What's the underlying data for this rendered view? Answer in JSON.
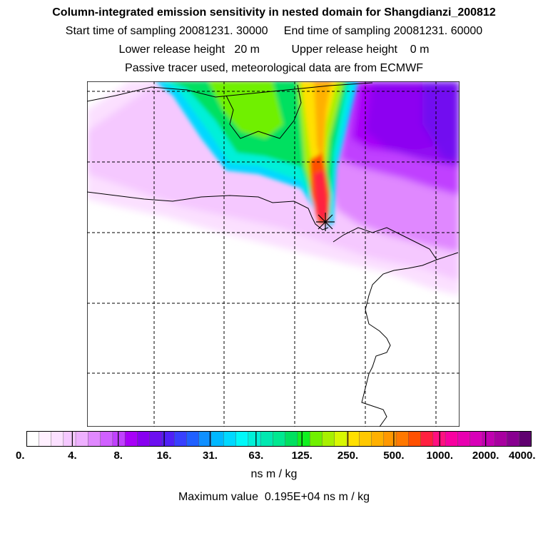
{
  "header": {
    "title": "Column-integrated emission sensitivity in nested domain for Shangdianzi_200812",
    "sampling": "Start time of sampling 20081231. 30000     End time of sampling 20081231. 60000",
    "release": "Lower release height   20 m          Upper release height    0 m",
    "tracer": "Passive tracer used, meteorological data are from ECMWF"
  },
  "colorbar": {
    "labels": [
      "0.",
      "4.",
      "8.",
      "16.",
      "31.",
      "63.",
      "125.",
      "250.",
      "500.",
      "1000.",
      "2000.",
      "4000."
    ],
    "units": "ns m / kg",
    "colors": [
      "#ffffff",
      "#fff0ff",
      "#fbe0ff",
      "#f5c8ff",
      "#eeb0ff",
      "#e088ff",
      "#d060ff",
      "#c040ff",
      "#a800f8",
      "#8800f0",
      "#6c10f0",
      "#5020f8",
      "#3840ff",
      "#2060ff",
      "#1090ff",
      "#00b8ff",
      "#00d8ff",
      "#00f8f8",
      "#00f0d8",
      "#00e8b0",
      "#00e890",
      "#00e060",
      "#10f020",
      "#70f000",
      "#a8f000",
      "#d8f800",
      "#ffe000",
      "#ffc800",
      "#ffb000",
      "#ff9800",
      "#ff7800",
      "#ff5000",
      "#ff2040",
      "#ff1080",
      "#f800a0",
      "#e800b0",
      "#d800b8",
      "#c000b0",
      "#a800a0",
      "#880090",
      "#600070"
    ]
  },
  "footer": {
    "maximum": "Maximum value  0.195E+04 ns m / kg"
  },
  "receptor": {
    "name": "Shangdianzi"
  }
}
